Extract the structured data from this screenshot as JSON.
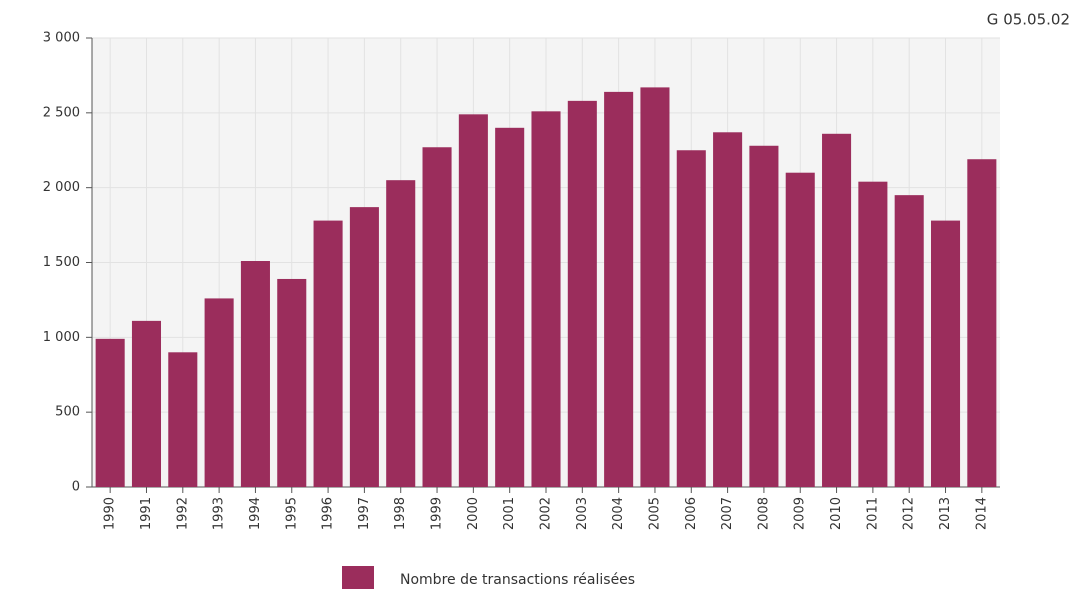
{
  "chart_data": {
    "type": "bar",
    "annotation": "G 05.05.02",
    "categories": [
      "1990",
      "1991",
      "1992",
      "1993",
      "1994",
      "1995",
      "1996",
      "1997",
      "1998",
      "1999",
      "2000",
      "2001",
      "2002",
      "2003",
      "2004",
      "2005",
      "2006",
      "2007",
      "2008",
      "2009",
      "2010",
      "2011",
      "2012",
      "2013",
      "2014"
    ],
    "series": [
      {
        "name": "Nombre de transactions réalisées",
        "color": "#9b2d5c",
        "values": [
          990,
          1110,
          900,
          1260,
          1510,
          1390,
          1780,
          1870,
          2050,
          2270,
          2490,
          2400,
          2510,
          2580,
          2640,
          2670,
          2250,
          2370,
          2280,
          2100,
          2360,
          2040,
          1950,
          1780,
          2190
        ]
      }
    ],
    "ylim": [
      0,
      3000
    ],
    "yticks": [
      0,
      500,
      {
        "value": 1000,
        "label": "1 000"
      },
      {
        "value": 1500,
        "label": "1 500"
      },
      {
        "value": 2000,
        "label": "2 000"
      },
      {
        "value": 2500,
        "label": "2 500"
      },
      {
        "value": 3000,
        "label": "3 000"
      }
    ],
    "grid": true
  }
}
